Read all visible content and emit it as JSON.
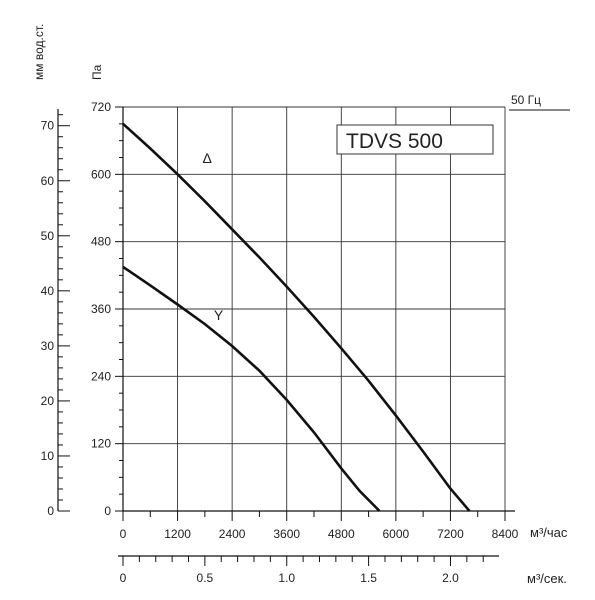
{
  "chart_data": {
    "type": "line",
    "title": "TDVS 500",
    "frequency_label": "50 Гц",
    "y_label_pa": "Па",
    "y_label_mm": "мм вод.ст.",
    "x_label_m3h": "м³/час",
    "x_label_m3s": "м³/сек.",
    "xlim": [
      0,
      8400
    ],
    "ylim": [
      0,
      720
    ],
    "mm_lim": [
      0,
      73.4
    ],
    "m3s_lim": [
      0,
      2.333
    ],
    "x_ticks": [
      "0",
      "1200",
      "2400",
      "3600",
      "4800",
      "6000",
      "7200",
      "8400"
    ],
    "x_tick_values": [
      0,
      1200,
      2400,
      3600,
      4800,
      6000,
      7200,
      8400
    ],
    "y_ticks": [
      "0",
      "120",
      "240",
      "360",
      "480",
      "600",
      "720"
    ],
    "y_tick_values": [
      0,
      120,
      240,
      360,
      480,
      600,
      720
    ],
    "mm_ticks": [
      "0",
      "10",
      "20",
      "30",
      "40",
      "50",
      "60",
      "70"
    ],
    "mm_tick_values": [
      0,
      10,
      20,
      30,
      40,
      50,
      60,
      70
    ],
    "m3s_ticks": [
      "0",
      "0.5",
      "1.0",
      "1.5",
      "2.0"
    ],
    "m3s_tick_values": [
      0,
      0.5,
      1.0,
      1.5,
      2.0
    ],
    "grid": true,
    "series": [
      {
        "name": "Δ",
        "x": [
          0,
          600,
          1200,
          1800,
          2400,
          3000,
          3600,
          4200,
          4800,
          5400,
          6000,
          6600,
          7200,
          7620
        ],
        "y": [
          690,
          646,
          600,
          552,
          502,
          452,
          400,
          346,
          290,
          232,
          170,
          106,
          40,
          0
        ]
      },
      {
        "name": "Y",
        "x": [
          0,
          600,
          1200,
          1800,
          2400,
          3000,
          3600,
          4200,
          4800,
          5200,
          5640
        ],
        "y": [
          435,
          402,
          368,
          333,
          294,
          250,
          198,
          140,
          76,
          36,
          0
        ]
      }
    ],
    "curve_labels": [
      {
        "text": "Δ",
        "x": 1850,
        "y": 620
      },
      {
        "text": "Y",
        "x": 2100,
        "y": 340
      }
    ]
  }
}
